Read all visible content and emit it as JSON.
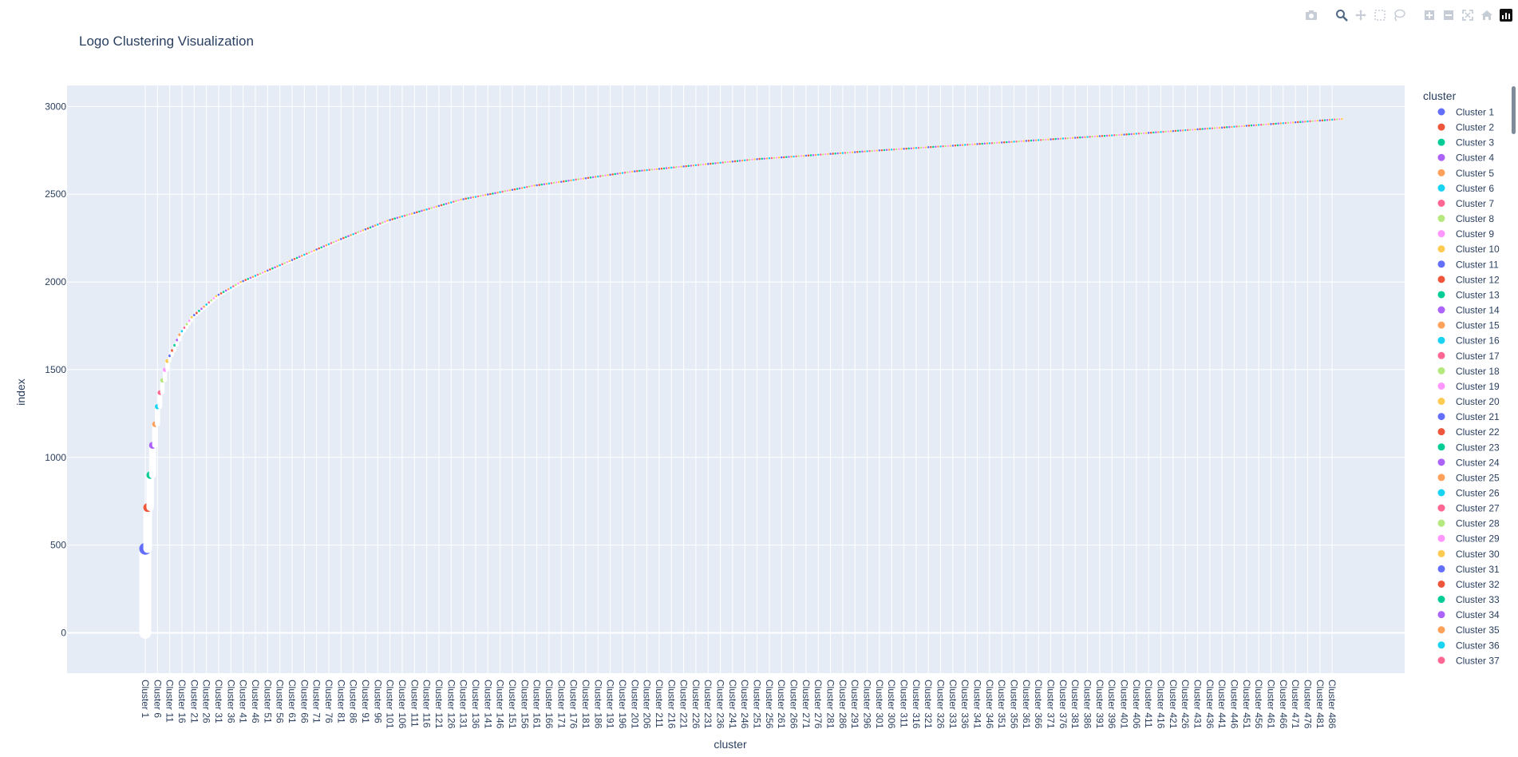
{
  "chart_data": {
    "type": "scatter",
    "title": "Logo Clustering Visualization",
    "xlabel": "cluster",
    "ylabel": "index",
    "ylim": [
      -230,
      3120
    ],
    "yticks": [
      0,
      500,
      1000,
      1500,
      2000,
      2500,
      3000
    ],
    "cluster_count": 490,
    "x_tick_step": 5,
    "cluster_label_prefix": "Cluster ",
    "legend_title": "cluster",
    "legend_visible_count": 37,
    "legend_placement": "right",
    "grid": true,
    "point_color": "#ffffff",
    "series": [
      {
        "cluster": "Cluster 1",
        "start": 0,
        "end": 479
      },
      {
        "cluster": "Cluster 2",
        "start": 480,
        "end": 714
      },
      {
        "cluster": "Cluster 3",
        "start": 715,
        "end": 899
      },
      {
        "cluster": "Cluster 4",
        "start": 900,
        "end": 1069
      },
      {
        "cluster": "Cluster 5",
        "start": 1070,
        "end": 1189
      },
      {
        "cluster": "Cluster 6",
        "start": 1190,
        "end": 1289
      },
      {
        "cluster": "Cluster 7",
        "start": 1290,
        "end": 1369
      },
      {
        "cluster": "Cluster 8",
        "start": 1370,
        "end": 1439
      },
      {
        "cluster": "Cluster 9",
        "start": 1440,
        "end": 1499
      },
      {
        "cluster": "Cluster 10",
        "start": 1500,
        "end": 1549
      }
    ],
    "cumulative_anchors": [
      {
        "cluster": 10,
        "index": 1550
      },
      {
        "cluster": 15,
        "index": 1700
      },
      {
        "cluster": 20,
        "index": 1800
      },
      {
        "cluster": 30,
        "index": 1920
      },
      {
        "cluster": 40,
        "index": 2000
      },
      {
        "cluster": 60,
        "index": 2120
      },
      {
        "cluster": 80,
        "index": 2240
      },
      {
        "cluster": 100,
        "index": 2350
      },
      {
        "cluster": 130,
        "index": 2470
      },
      {
        "cluster": 160,
        "index": 2550
      },
      {
        "cluster": 200,
        "index": 2630
      },
      {
        "cluster": 250,
        "index": 2700
      },
      {
        "cluster": 300,
        "index": 2750
      },
      {
        "cluster": 400,
        "index": 2840
      },
      {
        "cluster": 490,
        "index": 2930
      }
    ]
  },
  "colors": {
    "palette": [
      "#636efa",
      "#ef553b",
      "#00cc96",
      "#ab63fa",
      "#ffa15a",
      "#19d3f3",
      "#ff6692",
      "#b6e880",
      "#ff97ff",
      "#fecb52"
    ],
    "plot_background": "#e5ecf6",
    "grid": "#ffffff"
  },
  "modebar": {
    "icons": [
      "camera-icon",
      "zoom-icon",
      "pan-icon",
      "box-select-icon",
      "lasso-select-icon",
      "zoom-in-icon",
      "zoom-out-icon",
      "autoscale-icon",
      "reset-axes-icon",
      "plotly-logo-icon"
    ]
  }
}
